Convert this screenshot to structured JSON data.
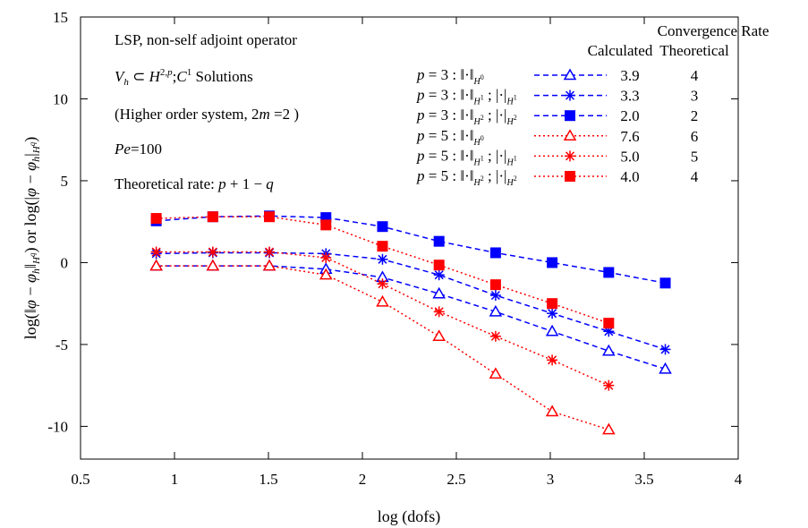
{
  "chart_data": {
    "type": "line",
    "title": "",
    "xlabel": "log (dofs)",
    "ylabel": "log(||φ − φ_h||_{H^q}) or log(|φ − φ_h|_{H^q})",
    "xlim": [
      0.5,
      4
    ],
    "ylim": [
      -12,
      15
    ],
    "xticks": [
      0.5,
      1,
      1.5,
      2,
      2.5,
      3,
      3.5,
      4
    ],
    "xtick_labels": [
      "0.5",
      "1",
      "1.5",
      "2",
      "2.5",
      "3",
      "3.5",
      "4"
    ],
    "yticks": [
      -10,
      -5,
      0,
      5,
      10,
      15
    ],
    "ytick_labels": [
      "-10",
      "-5",
      "0",
      "5",
      "10",
      "15"
    ],
    "grid": false,
    "legend_position": "top-right",
    "legend_header": {
      "title": "Convergence Rate",
      "col1": "Calculated",
      "col2": "Theoretical"
    },
    "annotations": [
      "LSP, non-self adjoint operator",
      "V_h ⊂ H^{2,p}; C^1 Solutions",
      "(Higher order system, 2m = 2 )",
      "Pe=100",
      "Theoretical rate: p + 1 − q"
    ],
    "series": [
      {
        "name": "p = 3 : ||·||_H0",
        "label_main": "p = 3 : ",
        "norm": "H0",
        "color": "#0000ff",
        "marker": "triangle-open",
        "dash": "dashed",
        "calculated": "3.9",
        "theoretical": "4",
        "x": [
          0.903,
          1.204,
          1.505,
          1.806,
          2.107,
          2.408,
          2.709,
          3.01,
          3.311,
          3.612
        ],
        "y": [
          -0.2,
          -0.2,
          -0.2,
          -0.4,
          -0.9,
          -1.9,
          -3.0,
          -4.2,
          -5.4,
          -6.5
        ]
      },
      {
        "name": "p = 3 : ||·||_H1 ; |·|_H1",
        "label_main": "p = 3 : ",
        "norm": "H1",
        "color": "#0000ff",
        "marker": "star",
        "dash": "dashed",
        "calculated": "3.3",
        "theoretical": "3",
        "x": [
          0.903,
          1.204,
          1.505,
          1.806,
          2.107,
          2.408,
          2.709,
          3.01,
          3.311,
          3.612
        ],
        "y": [
          0.55,
          0.6,
          0.6,
          0.55,
          0.2,
          -0.75,
          -2.0,
          -3.1,
          -4.2,
          -5.3
        ]
      },
      {
        "name": "p = 3 : ||·||_H2 ; |·|_H2",
        "label_main": "p = 3 : ",
        "norm": "H2",
        "color": "#0000ff",
        "marker": "square-filled",
        "dash": "dashed",
        "calculated": "2.0",
        "theoretical": "2",
        "x": [
          0.903,
          1.204,
          1.505,
          1.806,
          2.107,
          2.408,
          2.709,
          3.01,
          3.311,
          3.612
        ],
        "y": [
          2.55,
          2.8,
          2.85,
          2.75,
          2.2,
          1.3,
          0.6,
          0.0,
          -0.6,
          -1.25
        ]
      },
      {
        "name": "p = 5 : ||·||_H0",
        "label_main": "p = 5 : ",
        "norm": "H0",
        "color": "#ff0000",
        "marker": "triangle-open",
        "dash": "dotted",
        "calculated": "7.6",
        "theoretical": "6",
        "x": [
          0.903,
          1.204,
          1.505,
          1.806,
          2.107,
          2.408,
          2.709,
          3.01,
          3.311
        ],
        "y": [
          -0.2,
          -0.2,
          -0.2,
          -0.75,
          -2.4,
          -4.5,
          -6.8,
          -9.1,
          -10.2
        ]
      },
      {
        "name": "p = 5 : ||·||_H1 ; |·|_H1",
        "label_main": "p = 5 : ",
        "norm": "H1",
        "color": "#ff0000",
        "marker": "star",
        "dash": "dotted",
        "calculated": "5.0",
        "theoretical": "5",
        "x": [
          0.903,
          1.204,
          1.505,
          1.806,
          2.107,
          2.408,
          2.709,
          3.01,
          3.311
        ],
        "y": [
          0.65,
          0.65,
          0.65,
          0.3,
          -1.3,
          -3.0,
          -4.5,
          -5.95,
          -7.5
        ]
      },
      {
        "name": "p = 5 : ||·||_H2 ; |·|_H2",
        "label_main": "p = 5 : ",
        "norm": "H2",
        "color": "#ff0000",
        "marker": "square-filled",
        "dash": "dotted",
        "calculated": "4.0",
        "theoretical": "4",
        "x": [
          0.903,
          1.204,
          1.505,
          1.806,
          2.107,
          2.408,
          2.709,
          3.01,
          3.311
        ],
        "y": [
          2.7,
          2.8,
          2.8,
          2.3,
          1.0,
          -0.15,
          -1.35,
          -2.5,
          -3.7
        ]
      }
    ]
  }
}
